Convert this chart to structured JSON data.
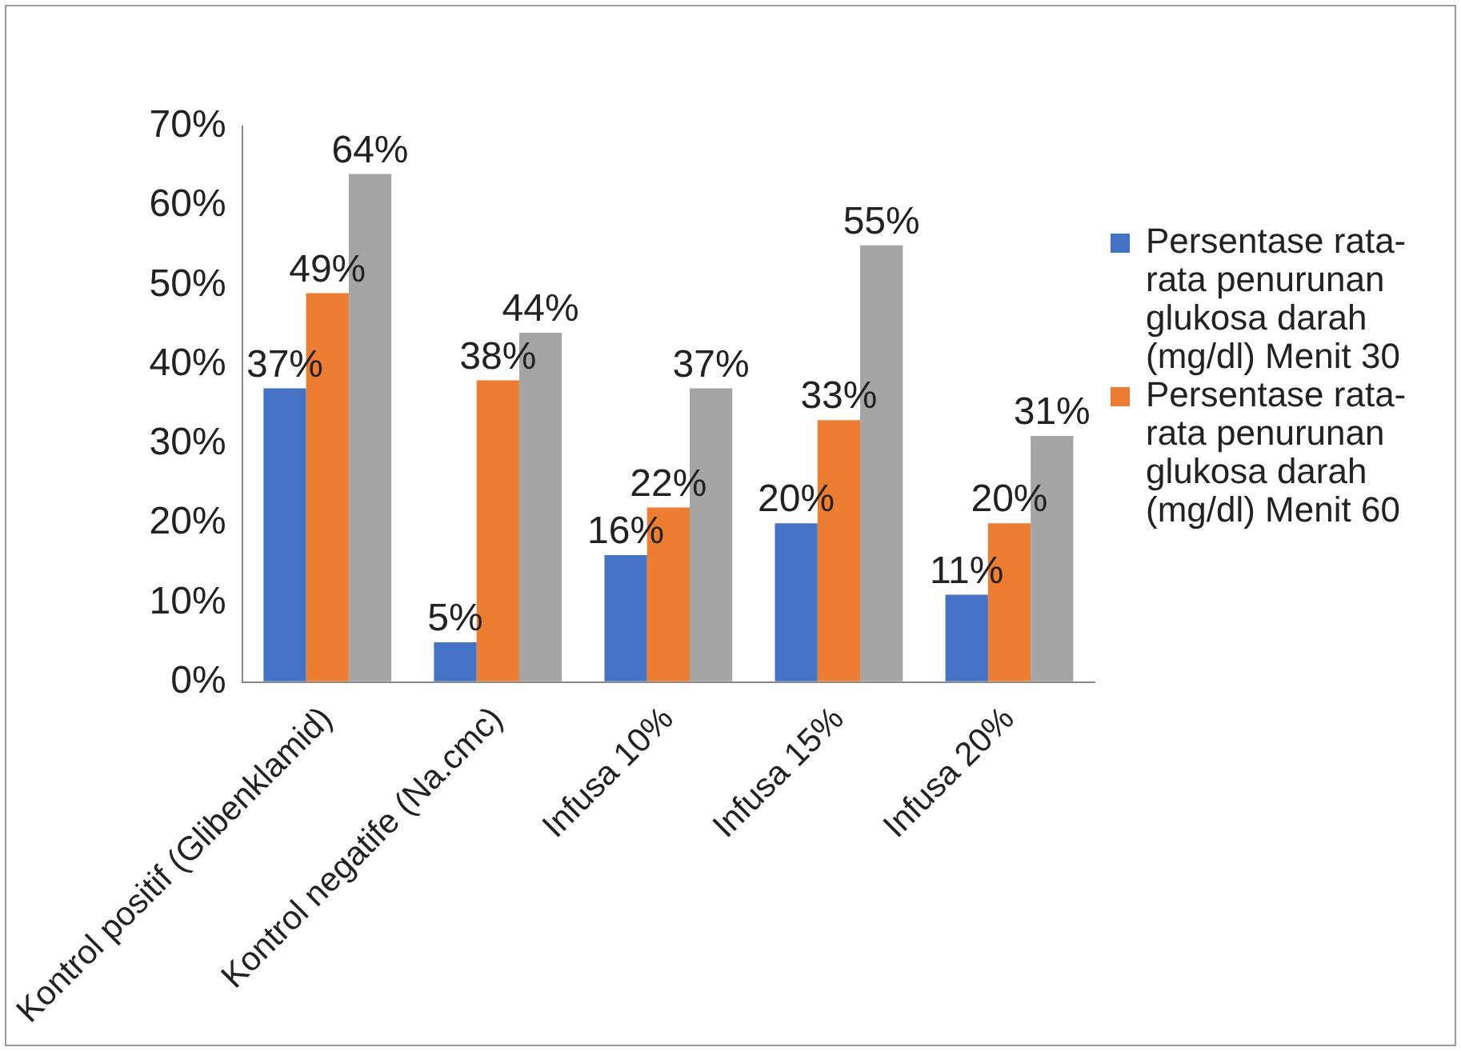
{
  "chart_data": {
    "type": "bar",
    "categories": [
      "Kontrol positif (Glibenklamid)",
      "Kontrol negatife (Na.cmc)",
      "Infusa 10%",
      "Infusa 15%",
      "Infusa 20%"
    ],
    "series": [
      {
        "name": "Persentase rata-rata penurunan glukosa darah (mg/dl) Menit 30",
        "color": "#4472c4",
        "values": [
          37,
          5,
          16,
          20,
          11
        ],
        "value_labels": [
          "37%",
          "5%",
          "16%",
          "20%",
          "11%"
        ]
      },
      {
        "name": "Persentase rata-rata penurunan glukosa darah (mg/dl) Menit 60",
        "color": "#ed7d31",
        "values": [
          49,
          38,
          22,
          33,
          20
        ],
        "value_labels": [
          "49%",
          "38%",
          "22%",
          "33%",
          "20%"
        ]
      },
      {
        "color": "#a5a5a5",
        "values": [
          64,
          44,
          37,
          55,
          31
        ],
        "value_labels": [
          "64%",
          "44%",
          "37%",
          "55%",
          "31%"
        ]
      }
    ],
    "ylim": [
      0,
      70
    ],
    "yticks": [
      {
        "value": 0,
        "label": "0%"
      },
      {
        "value": 10,
        "label": "10%"
      },
      {
        "value": 20,
        "label": "20%"
      },
      {
        "value": 30,
        "label": "30%"
      },
      {
        "value": 40,
        "label": "40%"
      },
      {
        "value": 50,
        "label": "50%"
      },
      {
        "value": 60,
        "label": "60%"
      },
      {
        "value": 70,
        "label": "70%"
      }
    ],
    "grid": false,
    "legend": "right"
  }
}
